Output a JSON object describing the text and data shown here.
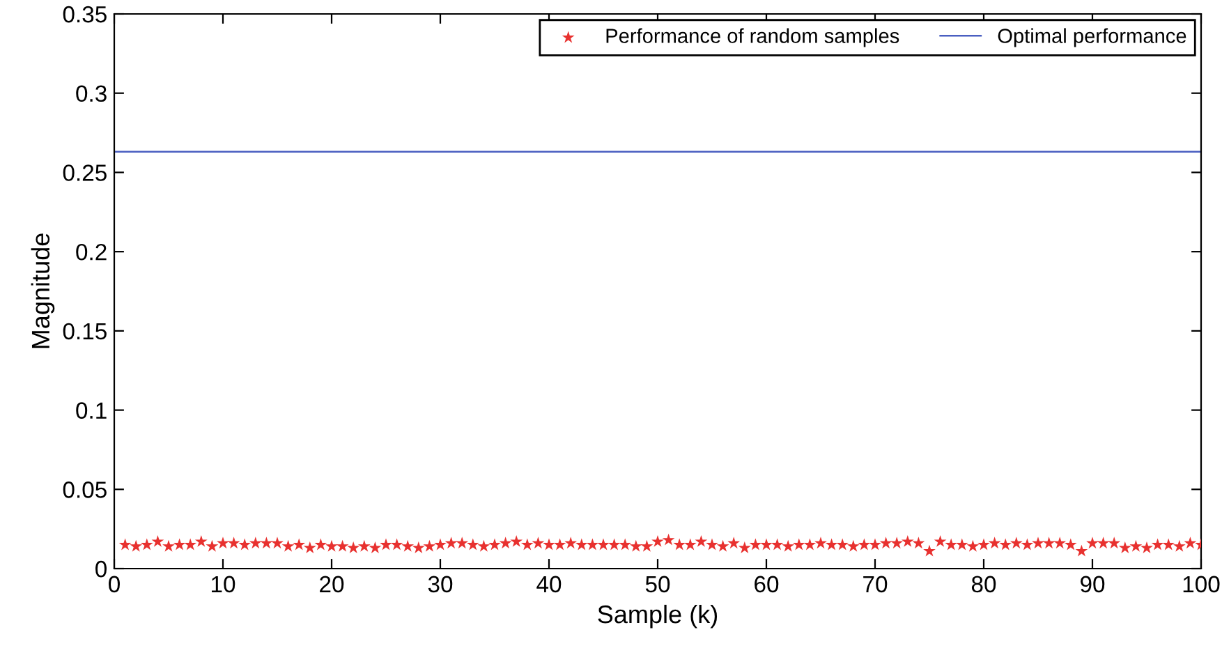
{
  "chart_data": {
    "type": "scatter",
    "xlabel": "Sample (k)",
    "ylabel": "Magnitude",
    "xlim": [
      0,
      100
    ],
    "xticks": [
      0,
      10,
      20,
      30,
      40,
      50,
      60,
      70,
      80,
      90,
      100
    ],
    "ylim": [
      0,
      0.35
    ],
    "yticks": [
      0,
      0.05,
      0.1,
      0.15,
      0.2,
      0.25,
      0.3,
      0.35
    ],
    "grid": false,
    "legend": "top right",
    "series": [
      {
        "name": "Performance of random samples",
        "marker": "star",
        "color": "#e8312f",
        "x": [
          1,
          2,
          3,
          4,
          5,
          6,
          7,
          8,
          9,
          10,
          11,
          12,
          13,
          14,
          15,
          16,
          17,
          18,
          19,
          20,
          21,
          22,
          23,
          24,
          25,
          26,
          27,
          28,
          29,
          30,
          31,
          32,
          33,
          34,
          35,
          36,
          37,
          38,
          39,
          40,
          41,
          42,
          43,
          44,
          45,
          46,
          47,
          48,
          49,
          50,
          51,
          52,
          53,
          54,
          55,
          56,
          57,
          58,
          59,
          60,
          61,
          62,
          63,
          64,
          65,
          66,
          67,
          68,
          69,
          70,
          71,
          72,
          73,
          74,
          75,
          76,
          77,
          78,
          79,
          80,
          81,
          82,
          83,
          84,
          85,
          86,
          87,
          88,
          89,
          90,
          91,
          92,
          93,
          94,
          95,
          96,
          97,
          98,
          99,
          100
        ],
        "values": [
          0.015,
          0.014,
          0.015,
          0.017,
          0.014,
          0.015,
          0.015,
          0.017,
          0.014,
          0.016,
          0.016,
          0.015,
          0.016,
          0.016,
          0.016,
          0.014,
          0.015,
          0.013,
          0.015,
          0.014,
          0.014,
          0.013,
          0.014,
          0.013,
          0.015,
          0.015,
          0.014,
          0.013,
          0.014,
          0.015,
          0.016,
          0.016,
          0.015,
          0.014,
          0.015,
          0.016,
          0.017,
          0.015,
          0.016,
          0.015,
          0.015,
          0.016,
          0.015,
          0.015,
          0.015,
          0.015,
          0.015,
          0.014,
          0.014,
          0.017,
          0.018,
          0.015,
          0.015,
          0.017,
          0.015,
          0.014,
          0.016,
          0.013,
          0.015,
          0.015,
          0.015,
          0.014,
          0.015,
          0.015,
          0.016,
          0.015,
          0.015,
          0.014,
          0.015,
          0.015,
          0.016,
          0.016,
          0.017,
          0.016,
          0.011,
          0.017,
          0.015,
          0.015,
          0.014,
          0.015,
          0.016,
          0.015,
          0.016,
          0.015,
          0.016,
          0.016,
          0.016,
          0.015,
          0.011,
          0.016,
          0.016,
          0.016,
          0.013,
          0.014,
          0.013,
          0.015,
          0.015,
          0.014,
          0.016,
          0.015
        ]
      },
      {
        "name": "Optimal performance",
        "type": "line",
        "marker": "none",
        "line_style": "solid",
        "color": "#4a5fc1",
        "x": [
          0,
          100
        ],
        "values": [
          0.263,
          0.263
        ]
      }
    ]
  }
}
